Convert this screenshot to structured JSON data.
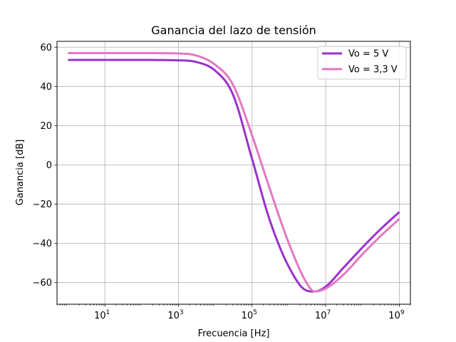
{
  "chart_data": {
    "type": "line",
    "title": "Ganancia del lazo de tensión",
    "xlabel": "Frecuencia [Hz]",
    "ylabel": "Ganancia [dB]",
    "xscale": "log",
    "xlim": [
      0.5,
      2000000000
    ],
    "ylim": [
      -71,
      63
    ],
    "x_ticks": [
      {
        "value": 10,
        "base": "10",
        "exp": "1"
      },
      {
        "value": 1000,
        "base": "10",
        "exp": "3"
      },
      {
        "value": 100000,
        "base": "10",
        "exp": "5"
      },
      {
        "value": 10000000,
        "base": "10",
        "exp": "7"
      },
      {
        "value": 1000000000,
        "base": "10",
        "exp": "9"
      }
    ],
    "y_ticks": [
      {
        "value": 60,
        "label": "60"
      },
      {
        "value": 40,
        "label": "40"
      },
      {
        "value": 20,
        "label": "20"
      },
      {
        "value": 0,
        "label": "0"
      },
      {
        "value": -20,
        "label": "−20"
      },
      {
        "value": -40,
        "label": "−40"
      },
      {
        "value": -60,
        "label": "−60"
      }
    ],
    "grid": true,
    "legend": {
      "position": "top-right"
    },
    "series": [
      {
        "name": "Vo = 5 V",
        "color": "#9932cc",
        "x": [
          1,
          10,
          100,
          1000,
          3000,
          10000,
          30000,
          100000,
          300000,
          1000000,
          3000000,
          5000000,
          10000000,
          30000000,
          100000000,
          300000000,
          1000000000
        ],
        "y": [
          53.5,
          53.5,
          53.5,
          53.3,
          52.5,
          48.0,
          36.0,
          3.0,
          -28.0,
          -52.0,
          -64.0,
          -64.5,
          -62.0,
          -52.5,
          -42.0,
          -33.0,
          -24.0
        ]
      },
      {
        "name": "Vo = 3,3 V",
        "color": "#e377c2",
        "x": [
          1,
          10,
          100,
          1000,
          3000,
          10000,
          30000,
          100000,
          300000,
          1000000,
          3000000,
          5000000,
          10000000,
          30000000,
          100000000,
          300000000,
          1000000000
        ],
        "y": [
          57.0,
          57.0,
          57.0,
          56.8,
          55.8,
          51.0,
          41.0,
          15.0,
          -12.0,
          -40.0,
          -60.0,
          -64.5,
          -63.0,
          -56.0,
          -45.5,
          -36.5,
          -27.5
        ]
      }
    ]
  }
}
